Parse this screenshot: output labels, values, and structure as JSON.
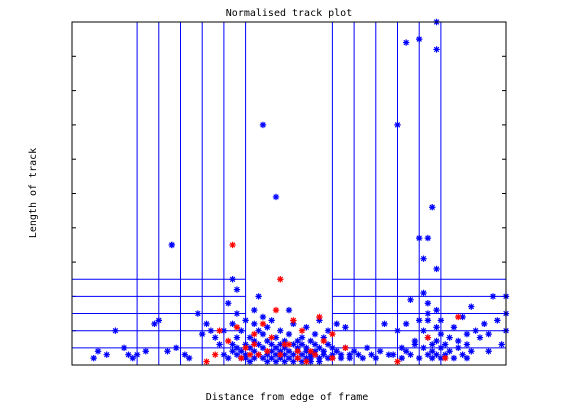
{
  "chart_data": {
    "type": "scatter",
    "title": "Normalised track plot",
    "xlabel": "Distance from edge of frame",
    "ylabel": "Length of track",
    "xlim": [
      0,
      100
    ],
    "ylim": [
      0,
      100
    ],
    "grid": false,
    "tick_labels_shown": false,
    "vertical_lines": [
      15,
      20,
      25,
      30,
      35,
      40,
      60,
      65,
      70,
      75,
      80,
      85
    ],
    "horizontal_lines": {
      "left_segment_x": [
        0,
        40
      ],
      "right_segment_x": [
        60,
        100
      ],
      "y": [
        5,
        10,
        15,
        20,
        25
      ]
    },
    "series": [
      {
        "color": "#0000ff",
        "marker": "*",
        "points": [
          [
            5,
            2
          ],
          [
            6,
            4
          ],
          [
            8,
            3
          ],
          [
            10,
            10
          ],
          [
            12,
            5
          ],
          [
            13,
            3
          ],
          [
            14,
            2
          ],
          [
            15,
            3
          ],
          [
            17,
            4
          ],
          [
            19,
            12
          ],
          [
            20,
            13
          ],
          [
            22,
            4
          ],
          [
            23,
            35
          ],
          [
            24,
            5
          ],
          [
            26,
            3
          ],
          [
            27,
            2
          ],
          [
            29,
            15
          ],
          [
            30,
            9
          ],
          [
            31,
            12
          ],
          [
            32,
            10
          ],
          [
            33,
            8
          ],
          [
            34,
            6
          ],
          [
            35,
            10
          ],
          [
            35,
            3
          ],
          [
            36,
            2
          ],
          [
            36,
            18
          ],
          [
            37,
            4
          ],
          [
            37,
            6
          ],
          [
            37,
            12
          ],
          [
            37,
            25
          ],
          [
            38,
            5
          ],
          [
            38,
            3
          ],
          [
            38,
            8
          ],
          [
            38,
            15
          ],
          [
            38,
            22
          ],
          [
            39,
            2
          ],
          [
            39,
            4
          ],
          [
            39,
            10
          ],
          [
            40,
            6
          ],
          [
            40,
            3
          ],
          [
            40,
            13
          ],
          [
            40,
            2
          ],
          [
            41,
            5
          ],
          [
            41,
            8
          ],
          [
            41,
            1
          ],
          [
            42,
            4
          ],
          [
            42,
            7
          ],
          [
            42,
            12
          ],
          [
            42,
            16
          ],
          [
            42,
            2
          ],
          [
            43,
            3
          ],
          [
            43,
            10
          ],
          [
            43,
            6
          ],
          [
            43,
            20
          ],
          [
            44,
            2
          ],
          [
            44,
            5
          ],
          [
            44,
            9
          ],
          [
            44,
            14
          ],
          [
            45,
            3
          ],
          [
            45,
            7
          ],
          [
            45,
            1
          ],
          [
            45,
            11
          ],
          [
            46,
            4
          ],
          [
            46,
            6
          ],
          [
            46,
            2
          ],
          [
            46,
            13
          ],
          [
            47,
            5
          ],
          [
            47,
            8
          ],
          [
            47,
            3
          ],
          [
            47,
            1
          ],
          [
            48,
            2
          ],
          [
            48,
            6
          ],
          [
            48,
            4
          ],
          [
            48,
            10
          ],
          [
            49,
            3
          ],
          [
            49,
            7
          ],
          [
            49,
            1
          ],
          [
            49,
            5
          ],
          [
            50,
            2
          ],
          [
            50,
            4
          ],
          [
            50,
            9
          ],
          [
            50,
            16
          ],
          [
            51,
            3
          ],
          [
            51,
            6
          ],
          [
            51,
            1
          ],
          [
            51,
            12
          ],
          [
            52,
            4
          ],
          [
            52,
            7
          ],
          [
            52,
            2
          ],
          [
            52,
            5
          ],
          [
            53,
            3
          ],
          [
            53,
            1
          ],
          [
            53,
            8
          ],
          [
            53,
            6
          ],
          [
            54,
            2
          ],
          [
            54,
            5
          ],
          [
            54,
            4
          ],
          [
            54,
            11
          ],
          [
            55,
            3
          ],
          [
            55,
            1
          ],
          [
            55,
            7
          ],
          [
            55,
            2
          ],
          [
            56,
            4
          ],
          [
            56,
            6
          ],
          [
            56,
            9
          ],
          [
            56,
            3
          ],
          [
            57,
            2
          ],
          [
            57,
            5
          ],
          [
            57,
            13
          ],
          [
            57,
            1
          ],
          [
            58,
            3
          ],
          [
            58,
            8
          ],
          [
            58,
            4
          ],
          [
            59,
            2
          ],
          [
            59,
            6
          ],
          [
            59,
            10
          ],
          [
            60,
            3
          ],
          [
            60,
            5
          ],
          [
            60,
            2
          ],
          [
            61,
            4
          ],
          [
            61,
            12
          ],
          [
            62,
            3
          ],
          [
            62,
            2
          ],
          [
            63,
            5
          ],
          [
            63,
            11
          ],
          [
            64,
            3
          ],
          [
            64,
            2
          ],
          [
            65,
            4
          ],
          [
            66,
            3
          ],
          [
            67,
            2
          ],
          [
            68,
            5
          ],
          [
            69,
            3
          ],
          [
            70,
            2
          ],
          [
            71,
            4
          ],
          [
            72,
            12
          ],
          [
            73,
            3
          ],
          [
            74,
            3
          ],
          [
            75,
            10
          ],
          [
            76,
            5
          ],
          [
            76,
            2
          ],
          [
            77,
            4
          ],
          [
            77,
            12
          ],
          [
            78,
            3
          ],
          [
            78,
            19
          ],
          [
            79,
            6
          ],
          [
            79,
            7
          ],
          [
            80,
            2
          ],
          [
            80,
            13
          ],
          [
            81,
            5
          ],
          [
            81,
            10
          ],
          [
            81,
            21
          ],
          [
            82,
            3
          ],
          [
            82,
            8
          ],
          [
            82,
            15
          ],
          [
            82,
            18
          ],
          [
            83,
            2
          ],
          [
            83,
            4
          ],
          [
            83,
            6
          ],
          [
            84,
            3
          ],
          [
            84,
            7
          ],
          [
            84,
            11
          ],
          [
            84,
            16
          ],
          [
            85,
            5
          ],
          [
            85,
            2
          ],
          [
            85,
            9
          ],
          [
            85,
            13
          ],
          [
            86,
            3
          ],
          [
            86,
            6
          ],
          [
            87,
            4
          ],
          [
            87,
            8
          ],
          [
            88,
            2
          ],
          [
            88,
            11
          ],
          [
            89,
            5
          ],
          [
            89,
            7
          ],
          [
            90,
            3
          ],
          [
            90,
            14
          ],
          [
            91,
            6
          ],
          [
            91,
            9
          ],
          [
            92,
            4
          ],
          [
            92,
            17
          ],
          [
            93,
            10
          ],
          [
            94,
            8
          ],
          [
            95,
            12
          ],
          [
            96,
            9
          ],
          [
            97,
            20
          ],
          [
            98,
            13
          ],
          [
            99,
            6
          ],
          [
            100,
            20
          ],
          [
            100,
            10
          ],
          [
            100,
            15
          ],
          [
            96,
            4
          ],
          [
            91,
            2
          ],
          [
            44,
            70
          ],
          [
            47,
            49
          ],
          [
            23,
            35
          ],
          [
            75,
            70
          ],
          [
            77,
            94
          ],
          [
            80,
            95
          ],
          [
            84,
            100
          ],
          [
            84,
            92
          ],
          [
            83,
            46
          ],
          [
            82,
            37
          ],
          [
            80,
            37
          ],
          [
            81,
            31
          ],
          [
            82,
            13
          ],
          [
            84,
            28
          ]
        ]
      },
      {
        "color": "#ff0000",
        "marker": "*",
        "points": [
          [
            37,
            35
          ],
          [
            34,
            10
          ],
          [
            36,
            7
          ],
          [
            38,
            11
          ],
          [
            40,
            5
          ],
          [
            42,
            9
          ],
          [
            43,
            3
          ],
          [
            44,
            12
          ],
          [
            46,
            8
          ],
          [
            48,
            3
          ],
          [
            48,
            25
          ],
          [
            50,
            6
          ],
          [
            51,
            13
          ],
          [
            52,
            2
          ],
          [
            53,
            10
          ],
          [
            55,
            4
          ],
          [
            57,
            14
          ],
          [
            58,
            7
          ],
          [
            60,
            2
          ],
          [
            63,
            5
          ],
          [
            33,
            3
          ],
          [
            31,
            1
          ],
          [
            39,
            2
          ],
          [
            45,
            4
          ],
          [
            49,
            6
          ],
          [
            54,
            1
          ],
          [
            56,
            3
          ],
          [
            47,
            16
          ],
          [
            42,
            6
          ],
          [
            60,
            9
          ],
          [
            82,
            8
          ],
          [
            86,
            2
          ],
          [
            75,
            1
          ],
          [
            89,
            14
          ],
          [
            41,
            3
          ],
          [
            52,
            4
          ]
        ]
      }
    ]
  }
}
